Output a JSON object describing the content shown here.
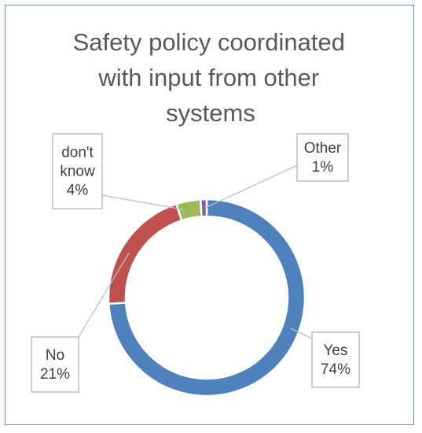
{
  "chart_data": {
    "type": "pie",
    "variant": "doughnut",
    "title_lines": [
      "Safety policy coordinated",
      "with input from other",
      "systems"
    ],
    "slices": [
      {
        "category": "Yes",
        "value": 74,
        "label": "74%",
        "color": "#4f81bd"
      },
      {
        "category": "No",
        "value": 21,
        "label": "21%",
        "color": "#c0504d"
      },
      {
        "category": "don't know",
        "value": 4,
        "label": "4%",
        "color": "#9bbb59"
      },
      {
        "category": "Other",
        "value": 1,
        "label": "1%",
        "color": "#8064a2"
      }
    ],
    "legend": "none",
    "data_labels": "category and percentage, in callout boxes"
  }
}
